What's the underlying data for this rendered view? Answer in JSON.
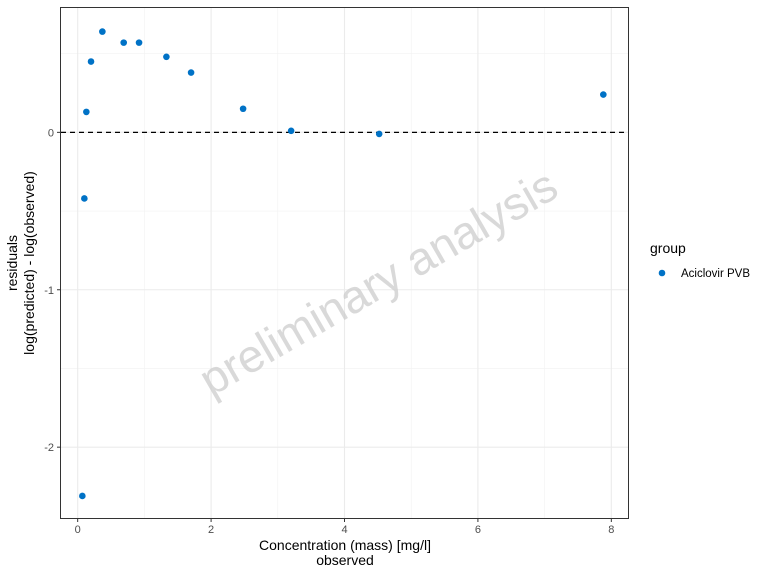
{
  "chart_data": {
    "type": "scatter",
    "xlabel": [
      "Concentration (mass) [mg/l]",
      "observed"
    ],
    "ylabel": [
      "residuals",
      "log(predicted) - log(observed)"
    ],
    "xlim": [
      -0.25,
      8.25
    ],
    "ylim": [
      -2.45,
      0.79
    ],
    "xticks": [
      0,
      2,
      4,
      6,
      8
    ],
    "yticks": [
      -2,
      -1,
      0
    ],
    "grid": true,
    "reference_line": {
      "y": 0,
      "style": "dashed"
    },
    "legend": {
      "title": "group",
      "position": "right",
      "entries": [
        "Aciclovir PVB"
      ]
    },
    "watermark": "preliminary analysis",
    "series": [
      {
        "name": "Aciclovir PVB",
        "color": "#0072c6",
        "points": [
          {
            "x": 0.07,
            "y": -2.31
          },
          {
            "x": 0.1,
            "y": -0.42
          },
          {
            "x": 0.13,
            "y": 0.13
          },
          {
            "x": 0.2,
            "y": 0.45
          },
          {
            "x": 0.37,
            "y": 0.64
          },
          {
            "x": 0.69,
            "y": 0.57
          },
          {
            "x": 0.92,
            "y": 0.57
          },
          {
            "x": 1.33,
            "y": 0.48
          },
          {
            "x": 1.7,
            "y": 0.38
          },
          {
            "x": 2.48,
            "y": 0.15
          },
          {
            "x": 3.2,
            "y": 0.01
          },
          {
            "x": 4.52,
            "y": -0.01
          },
          {
            "x": 7.88,
            "y": 0.24
          }
        ]
      }
    ]
  }
}
